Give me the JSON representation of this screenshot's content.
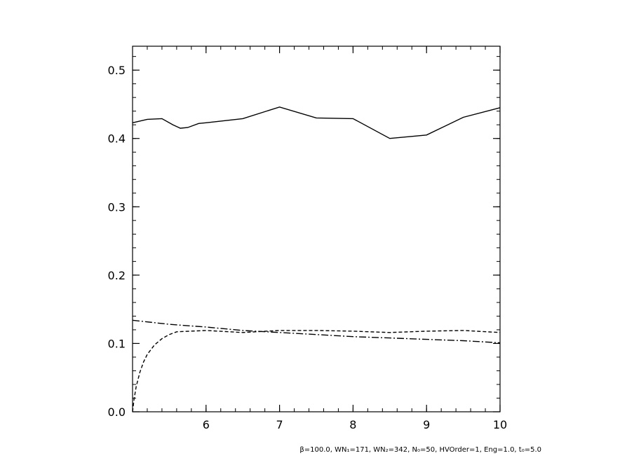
{
  "chart_data": {
    "type": "line",
    "title": "",
    "xlabel": "",
    "ylabel": "",
    "xlim": [
      5,
      10
    ],
    "ylim": [
      0,
      0.535
    ],
    "grid": false,
    "x_ticks": [
      {
        "value": 6,
        "label": "6"
      },
      {
        "value": 7,
        "label": "7"
      },
      {
        "value": 8,
        "label": "8"
      },
      {
        "value": 9,
        "label": "9"
      },
      {
        "value": 10,
        "label": "10"
      }
    ],
    "y_ticks": [
      {
        "value": 0.0,
        "label": "0.0"
      },
      {
        "value": 0.1,
        "label": "0.1"
      },
      {
        "value": 0.2,
        "label": "0.2"
      },
      {
        "value": 0.3,
        "label": "0.3"
      },
      {
        "value": 0.4,
        "label": "0.4"
      },
      {
        "value": 0.5,
        "label": "0.5"
      }
    ],
    "x_minor_step": 0.2,
    "y_minor_step": 0.02,
    "series": [
      {
        "style": "solid",
        "x": [
          5.0,
          5.2,
          5.4,
          5.55,
          5.65,
          5.75,
          5.9,
          6.0,
          6.5,
          7.0,
          7.5,
          8.0,
          8.5,
          9.0,
          9.5,
          10.0
        ],
        "y": [
          0.423,
          0.428,
          0.429,
          0.42,
          0.415,
          0.416,
          0.422,
          0.423,
          0.429,
          0.446,
          0.43,
          0.429,
          0.4,
          0.405,
          0.431,
          0.445
        ]
      },
      {
        "style": "dashed",
        "x": [
          5.0,
          5.02,
          5.05,
          5.1,
          5.15,
          5.2,
          5.3,
          5.4,
          5.5,
          5.6,
          6.0,
          6.5,
          7.0,
          7.5,
          8.0,
          8.5,
          9.0,
          9.5,
          10.0
        ],
        "y": [
          0.0,
          0.018,
          0.037,
          0.058,
          0.073,
          0.084,
          0.098,
          0.107,
          0.113,
          0.117,
          0.119,
          0.116,
          0.119,
          0.119,
          0.118,
          0.116,
          0.118,
          0.119,
          0.116
        ]
      },
      {
        "style": "dashdot",
        "x": [
          5.0,
          5.5,
          6.0,
          6.5,
          7.0,
          7.5,
          8.0,
          8.5,
          9.0,
          9.5,
          10.0
        ],
        "y": [
          0.134,
          0.128,
          0.124,
          0.119,
          0.116,
          0.113,
          0.11,
          0.108,
          0.106,
          0.104,
          0.101
        ]
      }
    ],
    "footnote": "β=100.0, WN₁=171, WN₂=342, N₀=50, HVOrder=1, Eng=1.0, t₀=5.0"
  }
}
